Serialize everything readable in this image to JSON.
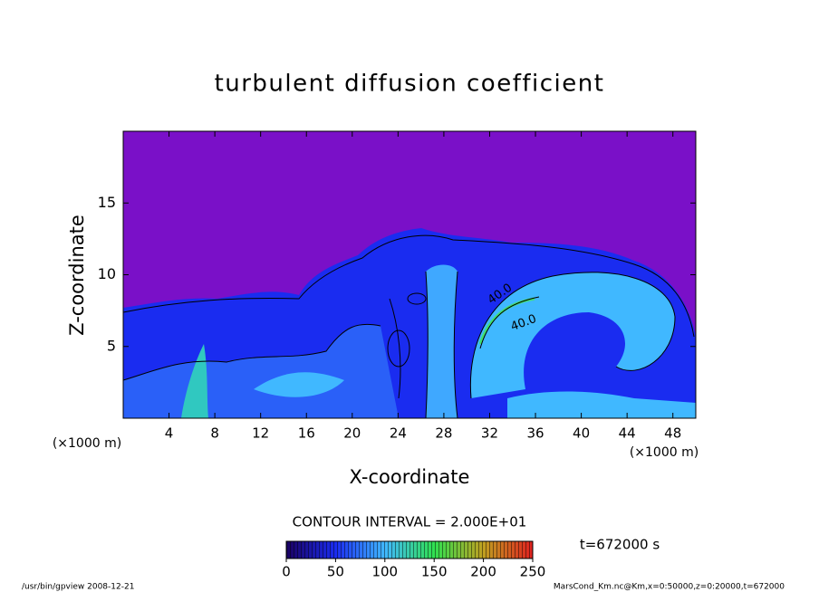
{
  "chart_data": {
    "type": "contour",
    "title": "turbulent diffusion coefficient",
    "x_label": "X-coordinate",
    "y_label": "Z-coordinate",
    "x_unit_label": "(×1000 m)",
    "y_unit_label": "(×1000 m)",
    "xlim": [
      0,
      50
    ],
    "xticks": [
      4,
      8,
      12,
      16,
      20,
      24,
      28,
      32,
      36,
      40,
      44,
      48
    ],
    "ylim": [
      0,
      20
    ],
    "yticks": [
      5,
      10,
      15
    ],
    "contour_interval_label": "CONTOUR INTERVAL = 2.000E+01",
    "time_label": "t=672000 s",
    "colorbar": {
      "lim": [
        0,
        250
      ],
      "ticks": [
        0,
        50,
        100,
        150,
        200,
        250
      ]
    },
    "annotations": [
      "40.0",
      "40.0"
    ],
    "footer_left": "/usr/bin/gpview  2008-12-21",
    "footer_right": "MarsCond_Km.nc@Km,x=0:50000,z=0:20000,t=672000"
  }
}
